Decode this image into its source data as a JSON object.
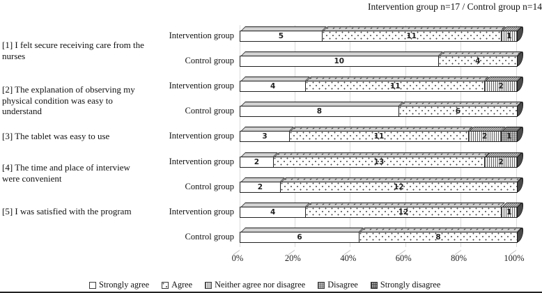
{
  "title": "Intervention group n=17 / Control group n=14",
  "colors": {
    "grid": "#dadada",
    "bar_border": "#1f1f1f",
    "bar_end_cap": "#4a4a4a",
    "disagree_fill": "#a6a6a6",
    "text": "#111111"
  },
  "questions": [
    {
      "text": "[1] I felt secure receiving care from the\nnurses"
    },
    {
      "text": "[2] The explanation of observing my\nphysical condition  was easy to\nunderstand"
    },
    {
      "text": "[3]  The tablet was easy to use"
    },
    {
      "text": "[4] The time  and place of interview\nwere convenient"
    },
    {
      "text": "[5] I was satisfied with the program"
    }
  ],
  "rows": [
    {
      "question": 1,
      "group": "Intervention group",
      "total": 17,
      "segments": [
        {
          "label": "Strongly agree",
          "pattern": "sa",
          "value": 5
        },
        {
          "label": "Agree",
          "pattern": "a",
          "value": 11
        },
        {
          "label": "Neither agree nor disagree",
          "pattern": "n",
          "value": 1
        }
      ]
    },
    {
      "question": 1,
      "group": "Control group",
      "total": 14,
      "segments": [
        {
          "label": "Strongly agree",
          "pattern": "sa",
          "value": 10
        },
        {
          "label": "Agree",
          "pattern": "a",
          "value": 4
        }
      ]
    },
    {
      "question": 2,
      "group": "Intervention group",
      "total": 17,
      "segments": [
        {
          "label": "Strongly agree",
          "pattern": "sa",
          "value": 4
        },
        {
          "label": "Agree",
          "pattern": "a",
          "value": 11
        },
        {
          "label": "Neither agree nor disagree",
          "pattern": "n",
          "value": 2
        }
      ]
    },
    {
      "question": 2,
      "group": "Control group",
      "total": 14,
      "segments": [
        {
          "label": "Strongly agree",
          "pattern": "sa",
          "value": 8
        },
        {
          "label": "Agree",
          "pattern": "a",
          "value": 6
        }
      ]
    },
    {
      "question": 3,
      "group": "Intervention group",
      "total": 17,
      "segments": [
        {
          "label": "Strongly agree",
          "pattern": "sa",
          "value": 3
        },
        {
          "label": "Agree",
          "pattern": "a",
          "value": 11
        },
        {
          "label": "Neither agree nor disagree",
          "pattern": "n",
          "value": 2
        },
        {
          "label": "Disagree",
          "pattern": "d",
          "value": 1
        }
      ]
    },
    {
      "question": 4,
      "group": "Intervention group",
      "total": 17,
      "segments": [
        {
          "label": "Strongly agree",
          "pattern": "sa",
          "value": 2
        },
        {
          "label": "Agree",
          "pattern": "a",
          "value": 13
        },
        {
          "label": "Neither agree nor disagree",
          "pattern": "n",
          "value": 2
        }
      ]
    },
    {
      "question": 4,
      "group": "Control group",
      "total": 14,
      "segments": [
        {
          "label": "Strongly agree",
          "pattern": "sa",
          "value": 2
        },
        {
          "label": "Agree",
          "pattern": "a",
          "value": 12
        }
      ]
    },
    {
      "question": 5,
      "group": "Intervention group",
      "total": 17,
      "segments": [
        {
          "label": "Strongly agree",
          "pattern": "sa",
          "value": 4
        },
        {
          "label": "Agree",
          "pattern": "a",
          "value": 12
        },
        {
          "label": "Neither agree nor disagree",
          "pattern": "n",
          "value": 1
        }
      ]
    },
    {
      "question": 5,
      "group": "Control group",
      "total": 14,
      "segments": [
        {
          "label": "Strongly agree",
          "pattern": "sa",
          "value": 6
        },
        {
          "label": "Agree",
          "pattern": "a",
          "value": 8
        }
      ]
    }
  ],
  "x_axis": {
    "ticks": [
      "0%",
      "20%",
      "40%",
      "60%",
      "80%",
      "100%"
    ]
  },
  "legend": [
    {
      "label": "Strongly agree",
      "pattern": "sa"
    },
    {
      "label": "Agree",
      "pattern": "a"
    },
    {
      "label": "Neither agree nor disagree",
      "pattern": "n"
    },
    {
      "label": "Disagree",
      "pattern": "d"
    },
    {
      "label": "Strongly disagree",
      "pattern": "sd"
    }
  ],
  "chart_data": {
    "type": "bar",
    "orientation": "horizontal",
    "stacked": true,
    "percent_scaled": true,
    "title": "Intervention group n=17 / Control group n=14",
    "categories": [
      "[1] Intervention group",
      "[1] Control group",
      "[2] Intervention group",
      "[2] Control group",
      "[3] Intervention group",
      "[4] Intervention group",
      "[4] Control group",
      "[5] Intervention group",
      "[5] Control group"
    ],
    "category_totals": [
      17,
      14,
      17,
      14,
      17,
      17,
      14,
      17,
      14
    ],
    "series": [
      {
        "name": "Strongly agree",
        "values": [
          5,
          10,
          4,
          8,
          3,
          2,
          2,
          4,
          6
        ]
      },
      {
        "name": "Agree",
        "values": [
          11,
          4,
          11,
          6,
          11,
          13,
          12,
          12,
          8
        ]
      },
      {
        "name": "Neither agree nor disagree",
        "values": [
          1,
          0,
          2,
          0,
          2,
          2,
          0,
          1,
          0
        ]
      },
      {
        "name": "Disagree",
        "values": [
          0,
          0,
          0,
          0,
          1,
          0,
          0,
          0,
          0
        ]
      },
      {
        "name": "Strongly disagree",
        "values": [
          0,
          0,
          0,
          0,
          0,
          0,
          0,
          0,
          0
        ]
      }
    ],
    "xlabel": "",
    "ylabel": "",
    "xlim": [
      0,
      100
    ],
    "x_tick_labels": [
      "0%",
      "20%",
      "40%",
      "60%",
      "80%",
      "100%"
    ],
    "grid": true,
    "legend_position": "bottom"
  }
}
